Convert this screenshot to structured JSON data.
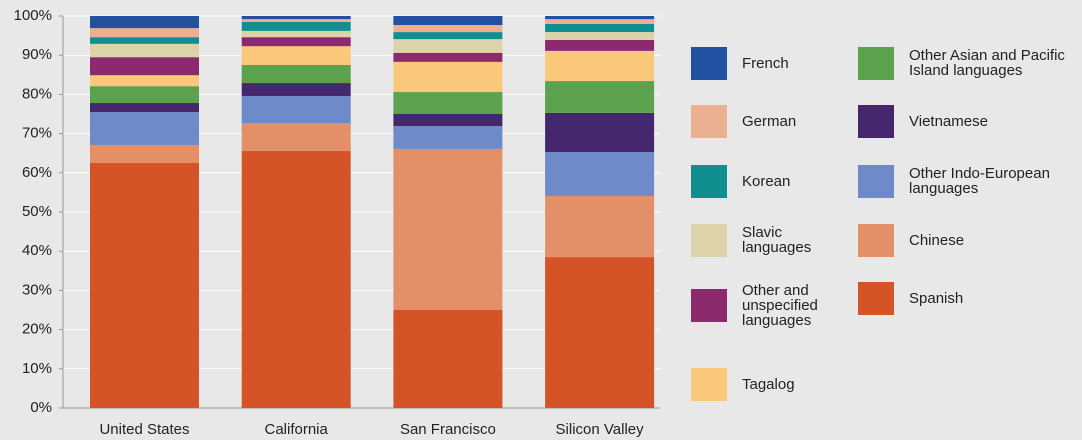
{
  "chart_data": {
    "type": "stacked_bar",
    "categories": [
      "United States",
      "California",
      "San Francisco",
      "Silicon Valley"
    ],
    "ylim": [
      0,
      100
    ],
    "yticks": [
      {
        "value": 0,
        "label": "0%"
      },
      {
        "value": 10,
        "label": "10%"
      },
      {
        "value": 20,
        "label": "20%"
      },
      {
        "value": 30,
        "label": "30%"
      },
      {
        "value": 40,
        "label": "40%"
      },
      {
        "value": 50,
        "label": "50%"
      },
      {
        "value": 60,
        "label": "60%"
      },
      {
        "value": 70,
        "label": "70%"
      },
      {
        "value": 80,
        "label": "80%"
      },
      {
        "value": 90,
        "label": "90%"
      },
      {
        "value": 100,
        "label": "100%"
      }
    ],
    "grid": true,
    "series": [
      {
        "name": "Spanish",
        "color": "#d45327",
        "values": [
          62.5,
          65.6,
          25.0,
          38.5
        ]
      },
      {
        "name": "Chinese",
        "color": "#e39069",
        "values": [
          4.6,
          7.1,
          41.1,
          15.6
        ]
      },
      {
        "name": "Other Indo-European languages",
        "color": "#6f8ac8",
        "values": [
          8.4,
          6.9,
          5.8,
          11.2
        ]
      },
      {
        "name": "Vietnamese",
        "color": "#44276c",
        "values": [
          2.3,
          3.3,
          3.1,
          10.0
        ]
      },
      {
        "name": "Other Asian and Pacific Island languages",
        "color": "#5ba14e",
        "values": [
          4.3,
          4.6,
          5.6,
          8.1
        ]
      },
      {
        "name": "Tagalog",
        "color": "#f9c87a",
        "values": [
          2.8,
          4.8,
          7.7,
          7.7
        ]
      },
      {
        "name": "Other and unspecified languages",
        "color": "#8b2a6d",
        "values": [
          4.6,
          2.3,
          2.3,
          2.8
        ]
      },
      {
        "name": "Slavic languages",
        "color": "#ddd3a8",
        "values": [
          3.4,
          1.6,
          3.5,
          2.0
        ]
      },
      {
        "name": "Korean",
        "color": "#108e90",
        "values": [
          1.7,
          2.3,
          1.8,
          2.1
        ]
      },
      {
        "name": "German",
        "color": "#ebb090",
        "values": [
          2.3,
          0.7,
          1.8,
          1.2
        ]
      },
      {
        "name": "French",
        "color": "#2350a0",
        "values": [
          3.1,
          0.8,
          2.3,
          0.8
        ]
      }
    ]
  }
}
